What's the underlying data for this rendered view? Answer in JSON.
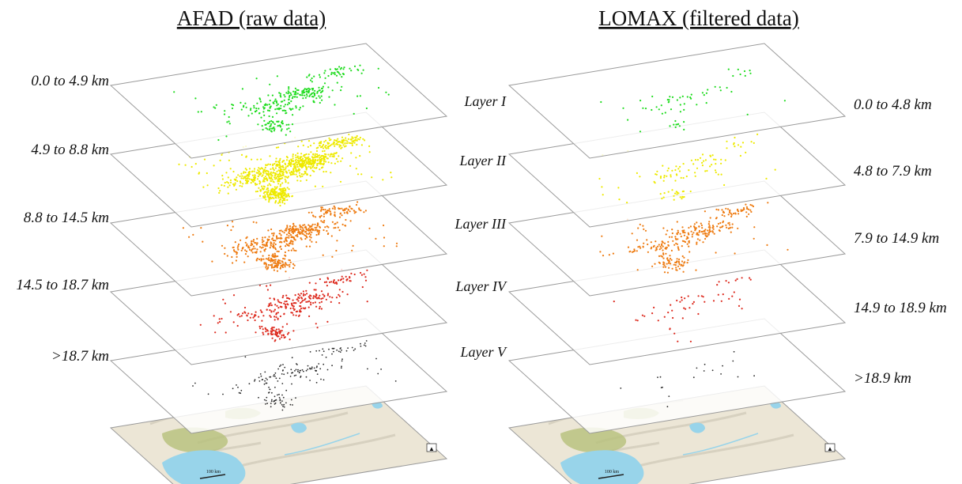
{
  "panels": [
    {
      "title": "AFAD (raw data)",
      "depth_labels": [
        "0.0 to 4.9 km",
        "4.9 to 8.8 km",
        "8.8 to 14.5 km",
        "14.5 to 18.7 km",
        ">18.7 km"
      ]
    },
    {
      "title": "LOMAX (filtered data)",
      "depth_labels": [
        "0.0 to 4.8 km",
        "4.8 to 7.9 km",
        "7.9 to 14.9 km",
        "14.9 to 18.9 km",
        ">18.9 km"
      ]
    }
  ],
  "layer_labels": [
    "Layer I",
    "Layer II",
    "Layer III",
    "Layer IV",
    "Layer V"
  ],
  "layer_colors": [
    "#1fdc1f",
    "#eeea00",
    "#ee7b11",
    "#dd2a1e",
    "#2a2a2a"
  ],
  "layer_density": {
    "AFAD": [
      0.35,
      1.0,
      0.6,
      0.35,
      0.2
    ],
    "LOMAX": [
      0.07,
      0.12,
      0.35,
      0.06,
      0.02
    ]
  },
  "basemap": {
    "scale_bar_label": "100 km",
    "north_arrow_symbol": "▲",
    "colors": {
      "land": "#ece6d6",
      "water": "#98d4ea",
      "vegetation": "#b6c17a",
      "relief": "#cfc7b6"
    }
  }
}
